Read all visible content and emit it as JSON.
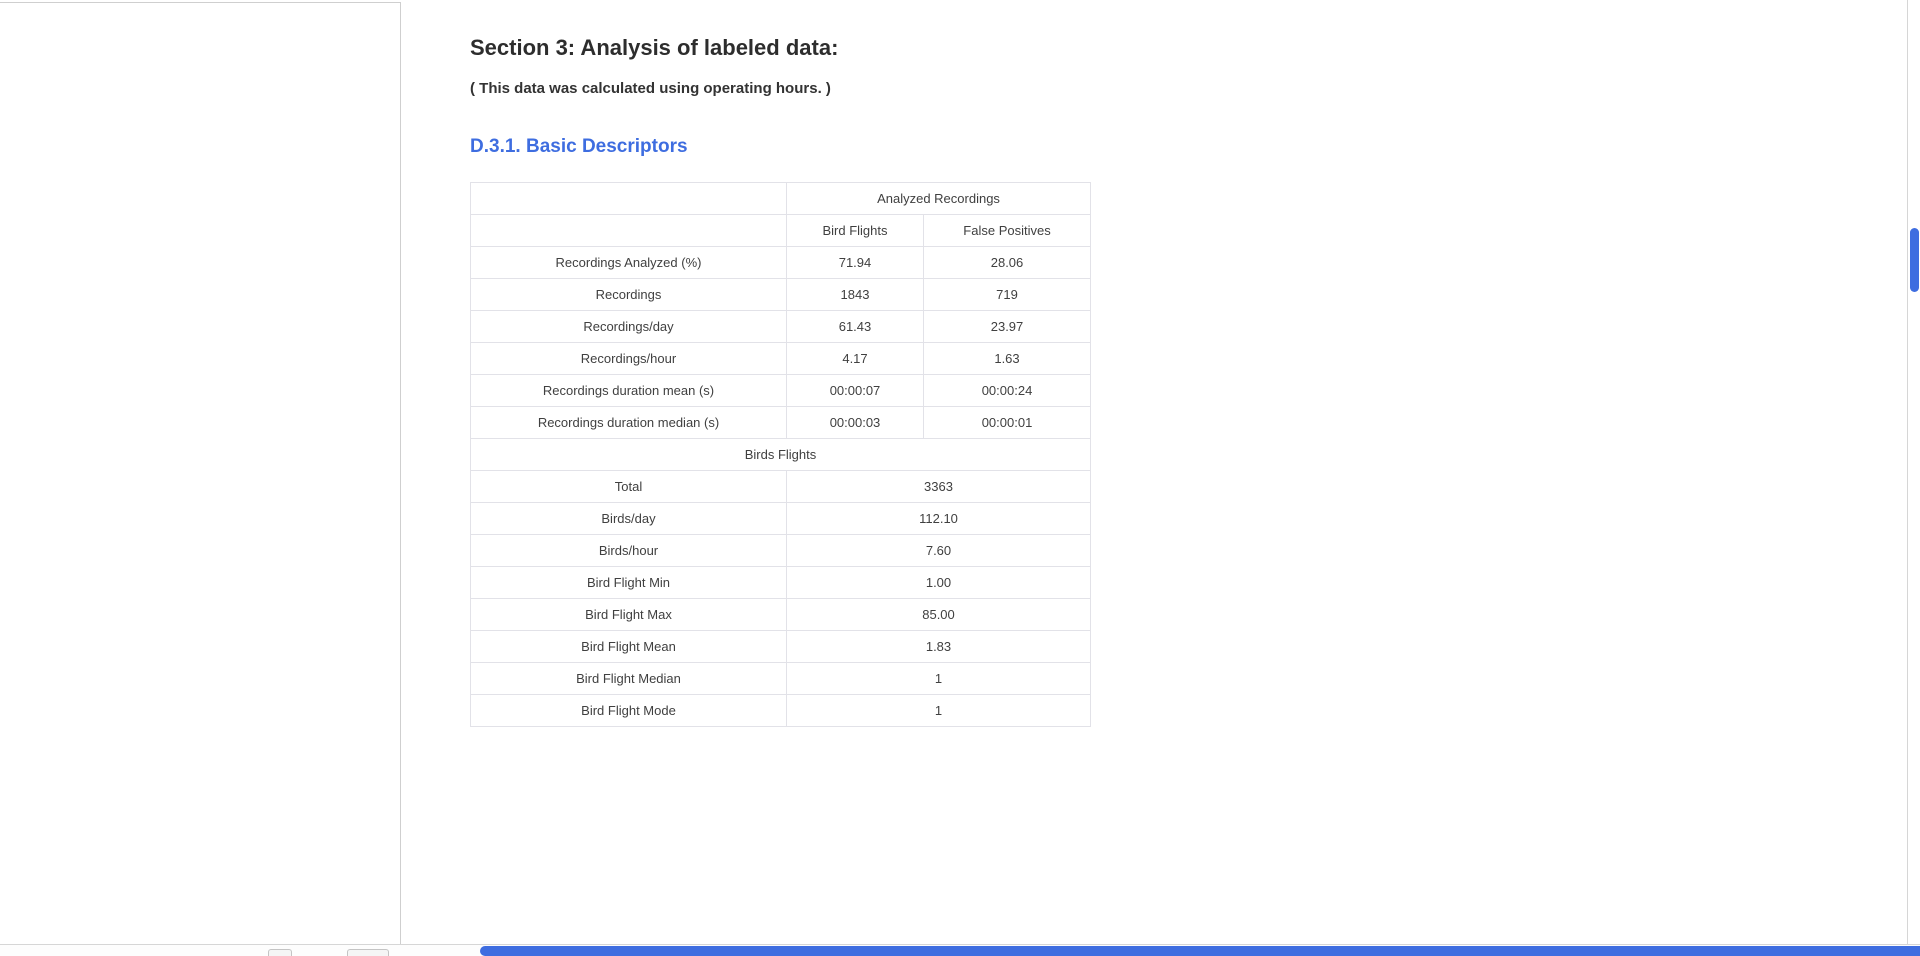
{
  "document": {
    "section_title": "Section 3: Analysis of labeled data:",
    "section_note": "( This data was calculated using operating hours. )",
    "subsection_title": "D.3.1. Basic Descriptors"
  },
  "table": {
    "group_header": "Analyzed Recordings",
    "columns": [
      "Bird Flights",
      "False Positives"
    ],
    "rows": [
      {
        "label": "Recordings Analyzed (%)",
        "bird_flights": "71.94",
        "false_positives": "28.06"
      },
      {
        "label": "Recordings",
        "bird_flights": "1843",
        "false_positives": "719"
      },
      {
        "label": "Recordings/day",
        "bird_flights": "61.43",
        "false_positives": "23.97"
      },
      {
        "label": "Recordings/hour",
        "bird_flights": "4.17",
        "false_positives": "1.63"
      },
      {
        "label": "Recordings duration mean (s)",
        "bird_flights": "00:00:07",
        "false_positives": "00:00:24"
      },
      {
        "label": "Recordings duration median (s)",
        "bird_flights": "00:00:03",
        "false_positives": "00:00:01"
      }
    ],
    "section_header": "Birds Flights",
    "summary_rows": [
      {
        "label": "Total",
        "value": "3363"
      },
      {
        "label": "Birds/day",
        "value": "112.10"
      },
      {
        "label": "Birds/hour",
        "value": "7.60"
      },
      {
        "label": "Bird Flight Min",
        "value": "1.00"
      },
      {
        "label": "Bird Flight Max",
        "value": "85.00"
      },
      {
        "label": "Bird Flight Mean",
        "value": "1.83"
      },
      {
        "label": "Bird Flight Median",
        "value": "1"
      },
      {
        "label": "Bird Flight Mode",
        "value": "1"
      }
    ]
  },
  "colors": {
    "accent_blue": "#3e6de0",
    "scrollbar_thumb": "#3e6de0",
    "table_border": "#e2e2e8",
    "text_dark": "#2d2d2d"
  }
}
